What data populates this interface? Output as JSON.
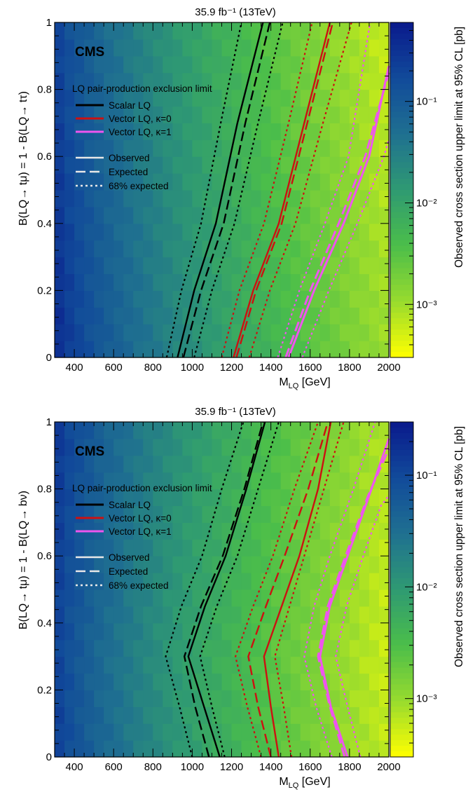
{
  "chart_data": [
    {
      "type": "heatmap",
      "title": "35.9 fb⁻¹ (13TeV)",
      "experiment": "CMS",
      "xlabel": "M_LQ [GeV]",
      "ylabel": "B(LQ→ tμ) = 1 - B(LQ→ tτ)",
      "zlabel": "Observed cross section upper limit at 95% CL [pb]",
      "xlim": [
        300,
        2000
      ],
      "ylim": [
        0,
        1
      ],
      "x_ticks": [
        400,
        600,
        800,
        1000,
        1200,
        1400,
        1600,
        1800,
        2000
      ],
      "y_ticks": [
        0,
        0.2,
        0.4,
        0.6,
        0.8,
        1
      ],
      "z_scale": "log",
      "zlim": [
        0.0003,
        0.6
      ],
      "z_ticks": [
        {
          "value": 0.1,
          "label": "10⁻¹"
        },
        {
          "value": 0.01,
          "label": "10⁻²"
        },
        {
          "value": 0.001,
          "label": "10⁻³"
        }
      ],
      "colormap": [
        "#0a1a8c",
        "#114a9a",
        "#1f7090",
        "#2f9a72",
        "#4bbe4a",
        "#98db2e",
        "#ffff00"
      ],
      "legend": {
        "placement": "top-left",
        "header": "LQ pair-production exclusion limit",
        "models": [
          {
            "label": "Scalar LQ",
            "color": "#000000"
          },
          {
            "label": "Vector LQ, κ=0",
            "color": "#cc1111"
          },
          {
            "label": "Vector LQ, κ=1",
            "color": "#ee55ee"
          }
        ],
        "styles": [
          {
            "label": "Observed",
            "dash": "solid"
          },
          {
            "label": "Expected",
            "dash": "long-dash"
          },
          {
            "label": "68% expected",
            "dash": "dotted"
          }
        ]
      },
      "series": [
        {
          "model": 0,
          "style": "observed",
          "x": [
            925,
            1010,
            1120,
            1230,
            1360
          ],
          "y": [
            0,
            0.2,
            0.4,
            0.7,
            1.0
          ]
        },
        {
          "model": 0,
          "style": "expected",
          "x": [
            955,
            1045,
            1160,
            1270,
            1395
          ],
          "y": [
            0,
            0.2,
            0.4,
            0.7,
            1.0
          ]
        },
        {
          "model": 0,
          "style": "68% expected",
          "x": [
            870,
            945,
            1045,
            1145,
            1250
          ],
          "y": [
            0,
            0.2,
            0.4,
            0.7,
            1.0
          ]
        },
        {
          "model": 0,
          "style": "68% expected",
          "x": [
            1010,
            1100,
            1215,
            1335,
            1460
          ],
          "y": [
            0,
            0.2,
            0.4,
            0.7,
            1.0
          ]
        },
        {
          "model": 1,
          "style": "observed",
          "x": [
            1210,
            1310,
            1440,
            1570,
            1700
          ],
          "y": [
            0,
            0.2,
            0.4,
            0.7,
            1.0
          ]
        },
        {
          "model": 1,
          "style": "expected",
          "x": [
            1225,
            1325,
            1455,
            1585,
            1715
          ],
          "y": [
            0,
            0.2,
            0.4,
            0.7,
            1.0
          ]
        },
        {
          "model": 1,
          "style": "68% expected",
          "x": [
            1150,
            1240,
            1365,
            1490,
            1610
          ],
          "y": [
            0,
            0.2,
            0.4,
            0.7,
            1.0
          ]
        },
        {
          "model": 1,
          "style": "68% expected",
          "x": [
            1290,
            1395,
            1525,
            1665,
            1810
          ],
          "y": [
            0,
            0.2,
            0.4,
            0.7,
            1.0
          ]
        },
        {
          "model": 2,
          "style": "observed",
          "x": [
            1490,
            1620,
            1770,
            1900,
            2000
          ],
          "y": [
            0,
            0.2,
            0.4,
            0.6,
            0.87
          ]
        },
        {
          "model": 2,
          "style": "expected",
          "x": [
            1475,
            1600,
            1745,
            1880,
            2000
          ],
          "y": [
            0,
            0.2,
            0.4,
            0.6,
            0.85
          ]
        },
        {
          "model": 2,
          "style": "68% expected",
          "x": [
            1435,
            1545,
            1675,
            1795,
            1905
          ],
          "y": [
            0,
            0.2,
            0.4,
            0.6,
            1.0
          ]
        },
        {
          "model": 2,
          "style": "68% expected",
          "x": [
            1560,
            1695,
            1840,
            1975,
            2000
          ],
          "y": [
            0,
            0.2,
            0.4,
            0.6,
            0.65
          ]
        }
      ]
    },
    {
      "type": "heatmap",
      "title": "35.9 fb⁻¹ (13TeV)",
      "experiment": "CMS",
      "xlabel": "M_LQ [GeV]",
      "ylabel": "B(LQ→ tμ) = 1 - B(LQ→ bν)",
      "zlabel": "Observed cross section upper limit at 95% CL [pb]",
      "xlim": [
        300,
        2000
      ],
      "ylim": [
        0,
        1
      ],
      "x_ticks": [
        400,
        600,
        800,
        1000,
        1200,
        1400,
        1600,
        1800,
        2000
      ],
      "y_ticks": [
        0,
        0.2,
        0.4,
        0.6,
        0.8,
        1
      ],
      "z_scale": "log",
      "zlim": [
        0.0003,
        0.3
      ],
      "z_ticks": [
        {
          "value": 0.1,
          "label": "10⁻¹"
        },
        {
          "value": 0.01,
          "label": "10⁻²"
        },
        {
          "value": 0.001,
          "label": "10⁻³"
        }
      ],
      "colormap": [
        "#0a1a8c",
        "#114a9a",
        "#1f7090",
        "#2f9a72",
        "#4bbe4a",
        "#98db2e",
        "#ffff00"
      ],
      "legend": {
        "placement": "top-left",
        "header": "LQ pair-production exclusion limit",
        "models": [
          {
            "label": "Scalar LQ",
            "color": "#000000"
          },
          {
            "label": "Vector LQ, κ=0",
            "color": "#cc1111"
          },
          {
            "label": "Vector LQ, κ=1",
            "color": "#ee55ee"
          }
        ],
        "styles": [
          {
            "label": "Observed",
            "dash": "solid"
          },
          {
            "label": "Expected",
            "dash": "long-dash"
          },
          {
            "label": "68% expected",
            "dash": "dotted"
          }
        ]
      },
      "series": [
        {
          "model": 0,
          "style": "observed",
          "x": [
            1140,
            1060,
            980,
            1065,
            1170,
            1275,
            1370
          ],
          "y": [
            0,
            0.15,
            0.3,
            0.45,
            0.6,
            0.8,
            1.0
          ]
        },
        {
          "model": 0,
          "style": "expected",
          "x": [
            1085,
            1015,
            960,
            1045,
            1155,
            1265,
            1360
          ],
          "y": [
            0,
            0.15,
            0.3,
            0.45,
            0.6,
            0.8,
            1.0
          ]
        },
        {
          "model": 0,
          "style": "68% expected",
          "x": [
            1000,
            935,
            865,
            945,
            1050,
            1150,
            1260
          ],
          "y": [
            0,
            0.15,
            0.3,
            0.45,
            0.6,
            0.8,
            1.0
          ]
        },
        {
          "model": 0,
          "style": "68% expected",
          "x": [
            1165,
            1100,
            1040,
            1125,
            1230,
            1335,
            1440
          ],
          "y": [
            0,
            0.15,
            0.3,
            0.45,
            0.6,
            0.8,
            1.0
          ]
        },
        {
          "model": 1,
          "style": "observed",
          "x": [
            1440,
            1400,
            1365,
            1455,
            1545,
            1640,
            1705
          ],
          "y": [
            0,
            0.15,
            0.3,
            0.45,
            0.6,
            0.8,
            1.0
          ]
        },
        {
          "model": 1,
          "style": "expected",
          "x": [
            1400,
            1335,
            1285,
            1375,
            1470,
            1590,
            1690
          ],
          "y": [
            0,
            0.15,
            0.3,
            0.45,
            0.6,
            0.8,
            1.0
          ]
        },
        {
          "model": 1,
          "style": "68% expected",
          "x": [
            1350,
            1280,
            1220,
            1310,
            1410,
            1520,
            1640
          ],
          "y": [
            0,
            0.15,
            0.3,
            0.45,
            0.6,
            0.8,
            1.0
          ]
        },
        {
          "model": 1,
          "style": "68% expected",
          "x": [
            1505,
            1465,
            1420,
            1495,
            1570,
            1670,
            1770
          ],
          "y": [
            0,
            0.15,
            0.3,
            0.45,
            0.6,
            0.8,
            1.0
          ]
        },
        {
          "model": 2,
          "style": "observed",
          "x": [
            1790,
            1705,
            1650,
            1700,
            1790,
            1900,
            2000
          ],
          "y": [
            0,
            0.15,
            0.3,
            0.45,
            0.6,
            0.78,
            0.95
          ]
        },
        {
          "model": 2,
          "style": "expected",
          "x": [
            1775,
            1700,
            1640,
            1690,
            1780,
            1895,
            2000
          ],
          "y": [
            0,
            0.15,
            0.3,
            0.45,
            0.6,
            0.78,
            0.92
          ]
        },
        {
          "model": 2,
          "style": "68% expected",
          "x": [
            1710,
            1630,
            1570,
            1620,
            1700,
            1820,
            1930
          ],
          "y": [
            0,
            0.15,
            0.3,
            0.45,
            0.6,
            0.8,
            1.0
          ]
        },
        {
          "model": 2,
          "style": "68% expected",
          "x": [
            1855,
            1790,
            1730,
            1785,
            1870,
            1960,
            2000
          ],
          "y": [
            0,
            0.15,
            0.3,
            0.45,
            0.6,
            0.75,
            0.78
          ]
        }
      ]
    }
  ]
}
